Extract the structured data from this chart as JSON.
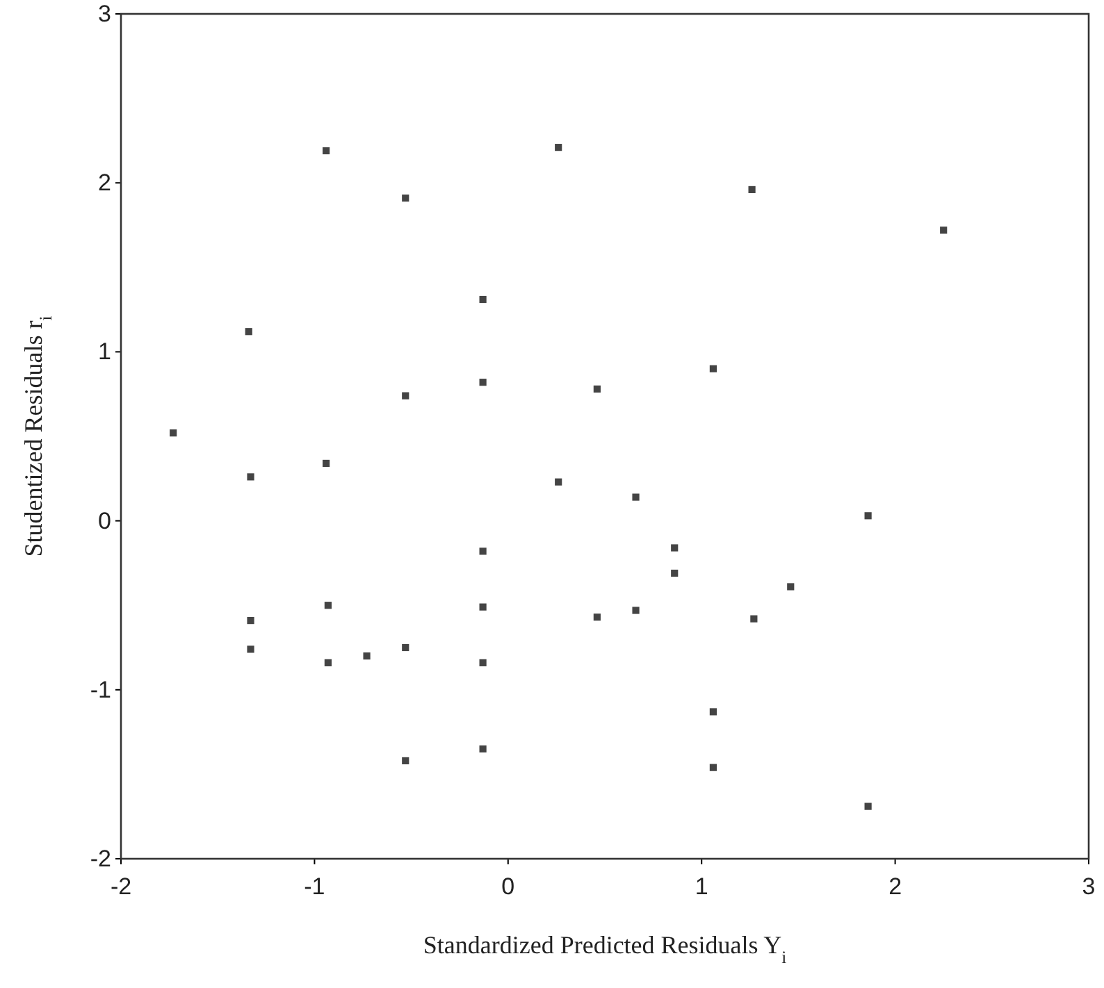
{
  "chart_data": {
    "type": "scatter",
    "xlabel": "Standardized Predicted Residuals Y$_{i}$",
    "ylabel": "Studentized Residuals r$_{i}$",
    "xlim": [
      -2,
      3
    ],
    "ylim": [
      -2,
      3
    ],
    "xticks": [
      -2,
      -1,
      0,
      1,
      2,
      3
    ],
    "yticks": [
      -2,
      -1,
      0,
      1,
      2,
      3
    ],
    "grid": false,
    "marker": "square",
    "series": [
      {
        "color": "#444444",
        "x": [
          -1.73,
          -1.34,
          -1.33,
          -1.33,
          -1.33,
          -0.94,
          -0.94,
          -0.93,
          -0.93,
          -0.73,
          -0.53,
          -0.53,
          -0.53,
          -0.53,
          -0.13,
          -0.13,
          -0.13,
          -0.13,
          -0.13,
          -0.13,
          0.26,
          0.26,
          0.46,
          0.46,
          0.66,
          0.66,
          0.86,
          0.86,
          1.06,
          1.06,
          1.06,
          1.26,
          1.27,
          1.46,
          1.86,
          1.86,
          2.25
        ],
        "values": [
          0.52,
          1.12,
          0.26,
          -0.59,
          -0.76,
          2.19,
          0.34,
          -0.5,
          -0.84,
          -0.8,
          1.91,
          0.74,
          -0.75,
          -1.42,
          1.31,
          0.82,
          -0.18,
          -0.51,
          -0.84,
          -1.35,
          2.21,
          0.23,
          0.78,
          -0.57,
          0.14,
          -0.53,
          -0.16,
          -0.31,
          0.9,
          -1.13,
          -1.46,
          1.96,
          -0.58,
          -0.39,
          0.03,
          -1.69,
          1.72
        ]
      }
    ]
  }
}
